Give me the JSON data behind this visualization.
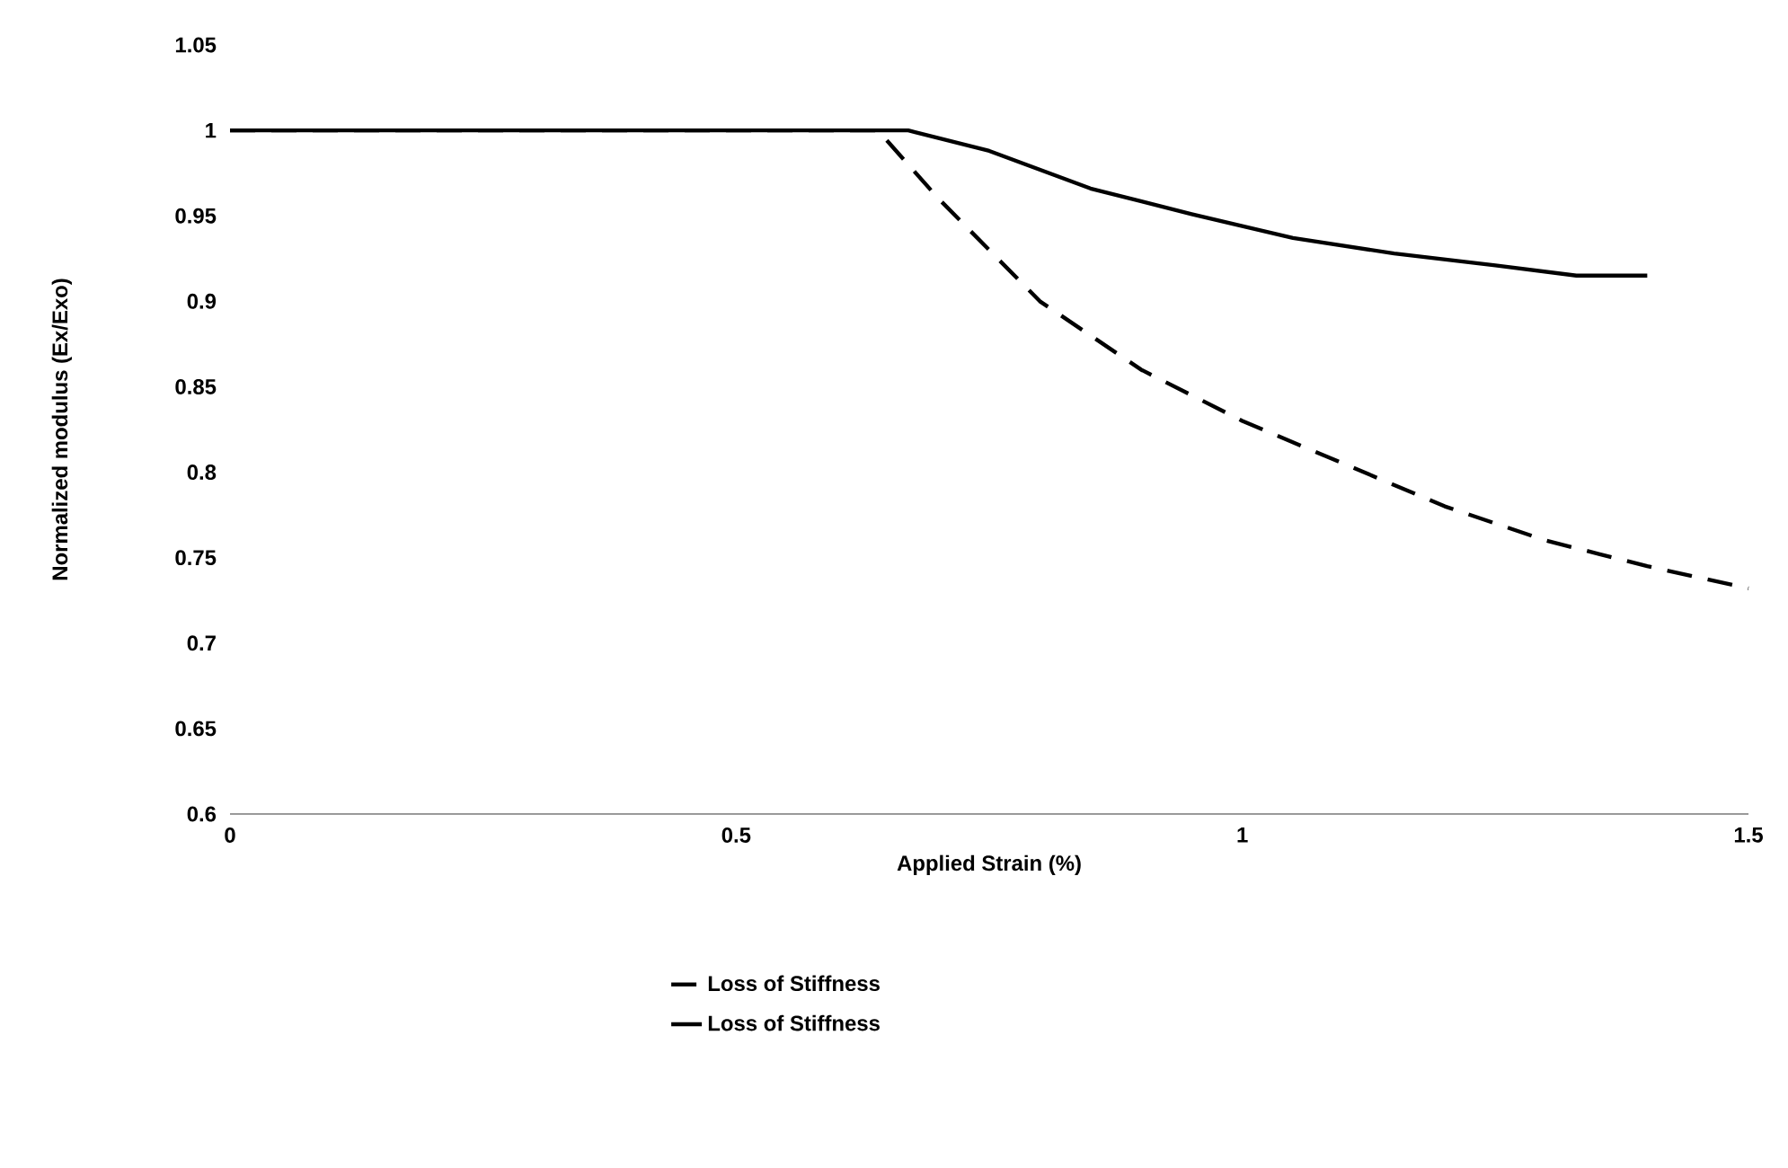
{
  "chart_data": {
    "type": "line",
    "xlabel": "Applied Strain (%)",
    "ylabel": "Normalized modulus (Ex/Exo)",
    "series": [
      {
        "name": "Loss of Stiffness",
        "color": "#000000",
        "line_style": "dashed",
        "x": [
          0,
          0.64,
          0.7,
          0.8,
          0.9,
          1.0,
          1.1,
          1.2,
          1.3,
          1.4,
          1.5
        ],
        "values": [
          1,
          1,
          0.96,
          0.9,
          0.86,
          0.83,
          0.805,
          0.78,
          0.76,
          0.745,
          0.732
        ]
      },
      {
        "name": "Loss of Stiffness",
        "color": "#000000",
        "line_style": "solid",
        "x": [
          0,
          0.67,
          0.75,
          0.85,
          0.95,
          1.05,
          1.15,
          1.25,
          1.33,
          1.4
        ],
        "values": [
          1,
          1,
          0.988,
          0.966,
          0.951,
          0.937,
          0.928,
          0.921,
          0.915,
          0.915
        ]
      }
    ],
    "xlim": [
      0,
      1.5
    ],
    "xticks": [
      0,
      0.5,
      1,
      1.5
    ],
    "ylim": [
      0.6,
      1.05
    ],
    "yticks": [
      0.6,
      0.65,
      0.7,
      0.75,
      0.8,
      0.85,
      0.9,
      0.95,
      1,
      1.05
    ],
    "grid": false,
    "legend": "bottom",
    "marker": "none"
  }
}
